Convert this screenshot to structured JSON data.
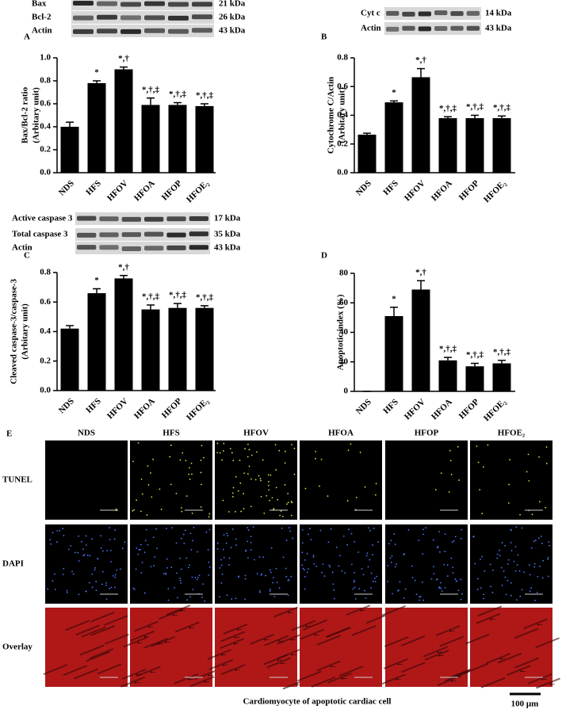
{
  "chart_data": [
    {
      "type": "bar",
      "panel": "A",
      "y_label": [
        "Bax/Bcl-2 ratio",
        "(Arbitary unit)"
      ],
      "categories": [
        "NDS",
        "HFS",
        "HFOV",
        "HFOA",
        "HFOP",
        "HFOE₂"
      ],
      "values": [
        0.4,
        0.78,
        0.9,
        0.59,
        0.59,
        0.58
      ],
      "errors": [
        0.04,
        0.02,
        0.02,
        0.06,
        0.02,
        0.02
      ],
      "annotations": [
        null,
        "*",
        "*,†",
        "*,†,‡",
        "*,†,‡",
        "*,†,‡"
      ],
      "color": "#000000",
      "ylim": [
        0,
        1.0
      ],
      "yticks": [
        {
          "value": 0,
          "label": "0.0"
        },
        0.2,
        0.4,
        0.6,
        0.8,
        {
          "value": 1.0,
          "label": "1.0"
        }
      ]
    },
    {
      "type": "bar",
      "panel": "B",
      "y_label": [
        "Cytochrome C/Actin",
        "(Arbitary unit)"
      ],
      "categories": [
        "NDS",
        "HFS",
        "HFOV",
        "HFOA",
        "HFOP",
        "HFOE₂"
      ],
      "values": [
        0.265,
        0.49,
        0.665,
        0.38,
        0.38,
        0.38
      ],
      "errors": [
        0.01,
        0.01,
        0.06,
        0.01,
        0.02,
        0.015
      ],
      "annotations": [
        null,
        "*",
        "*,†",
        "*,†,‡",
        "*,†,‡",
        "*,†,‡"
      ],
      "color": "#000000",
      "ylim": [
        0,
        0.8
      ],
      "yticks": [
        {
          "value": 0,
          "label": "0.0"
        },
        0.2,
        0.4,
        0.6,
        0.8
      ]
    },
    {
      "type": "bar",
      "panel": "C",
      "y_label": [
        "Cleaved caspase-3/caspase-3",
        "(Arbitary unit)"
      ],
      "categories": [
        "NDS",
        "HFS",
        "HFOV",
        "HFOA",
        "HFOP",
        "HFOE₂"
      ],
      "values": [
        0.42,
        0.66,
        0.76,
        0.55,
        0.56,
        0.56
      ],
      "errors": [
        0.02,
        0.03,
        0.02,
        0.03,
        0.03,
        0.015
      ],
      "annotations": [
        null,
        "*",
        "*,†",
        "*,†,‡",
        "*,†,‡",
        "*,†,‡"
      ],
      "color": "#000000",
      "ylim": [
        0,
        0.8
      ],
      "yticks": [
        {
          "value": 0,
          "label": "0.0"
        },
        0.2,
        0.4,
        0.6,
        0.8
      ]
    },
    {
      "type": "bar",
      "panel": "D",
      "y_label": [
        "Apoptotic index (%)"
      ],
      "categories": [
        "NDS",
        "HFS",
        "HFOV",
        "HFOA",
        "HFOP",
        "HFOE₂"
      ],
      "values": [
        0,
        51,
        69,
        21,
        17,
        19
      ],
      "errors": [
        0,
        6,
        6,
        2,
        2,
        2
      ],
      "annotations": [
        null,
        "*",
        "*,†",
        "*,†,‡",
        "*,†,‡",
        "*,†,‡"
      ],
      "color": "#000000",
      "ylim": [
        0,
        80
      ],
      "yticks": [
        0,
        20,
        40,
        60,
        80
      ]
    }
  ],
  "blots": [
    {
      "rows": [
        {
          "name": "Bax",
          "size": "21 kDa"
        },
        {
          "name": "Bcl-2",
          "size": "26 kDa"
        },
        {
          "name": "Actin",
          "size": "43 kDa"
        }
      ]
    },
    {
      "rows": [
        {
          "name": "Cyt c",
          "size": "14 kDa"
        },
        {
          "name": "Actin",
          "size": "43 kDa"
        }
      ]
    },
    {
      "rows": [
        {
          "name": "Active caspase 3",
          "size": "17 kDa"
        },
        {
          "name": "Total caspase 3",
          "size": "35 kDa"
        },
        {
          "name": "Actin",
          "size": "43 kDa"
        }
      ]
    }
  ],
  "panel_e": {
    "panel": "E",
    "columns": [
      "NDS",
      "HFS",
      "HFOV",
      "HFOA",
      "HFOP",
      "HFOE₂"
    ],
    "rows": [
      "TUNEL",
      "DAPI",
      "Overlay"
    ],
    "caption": "Cardiomyocyte of apoptotic cardiac cell",
    "scale": "100 μm"
  }
}
